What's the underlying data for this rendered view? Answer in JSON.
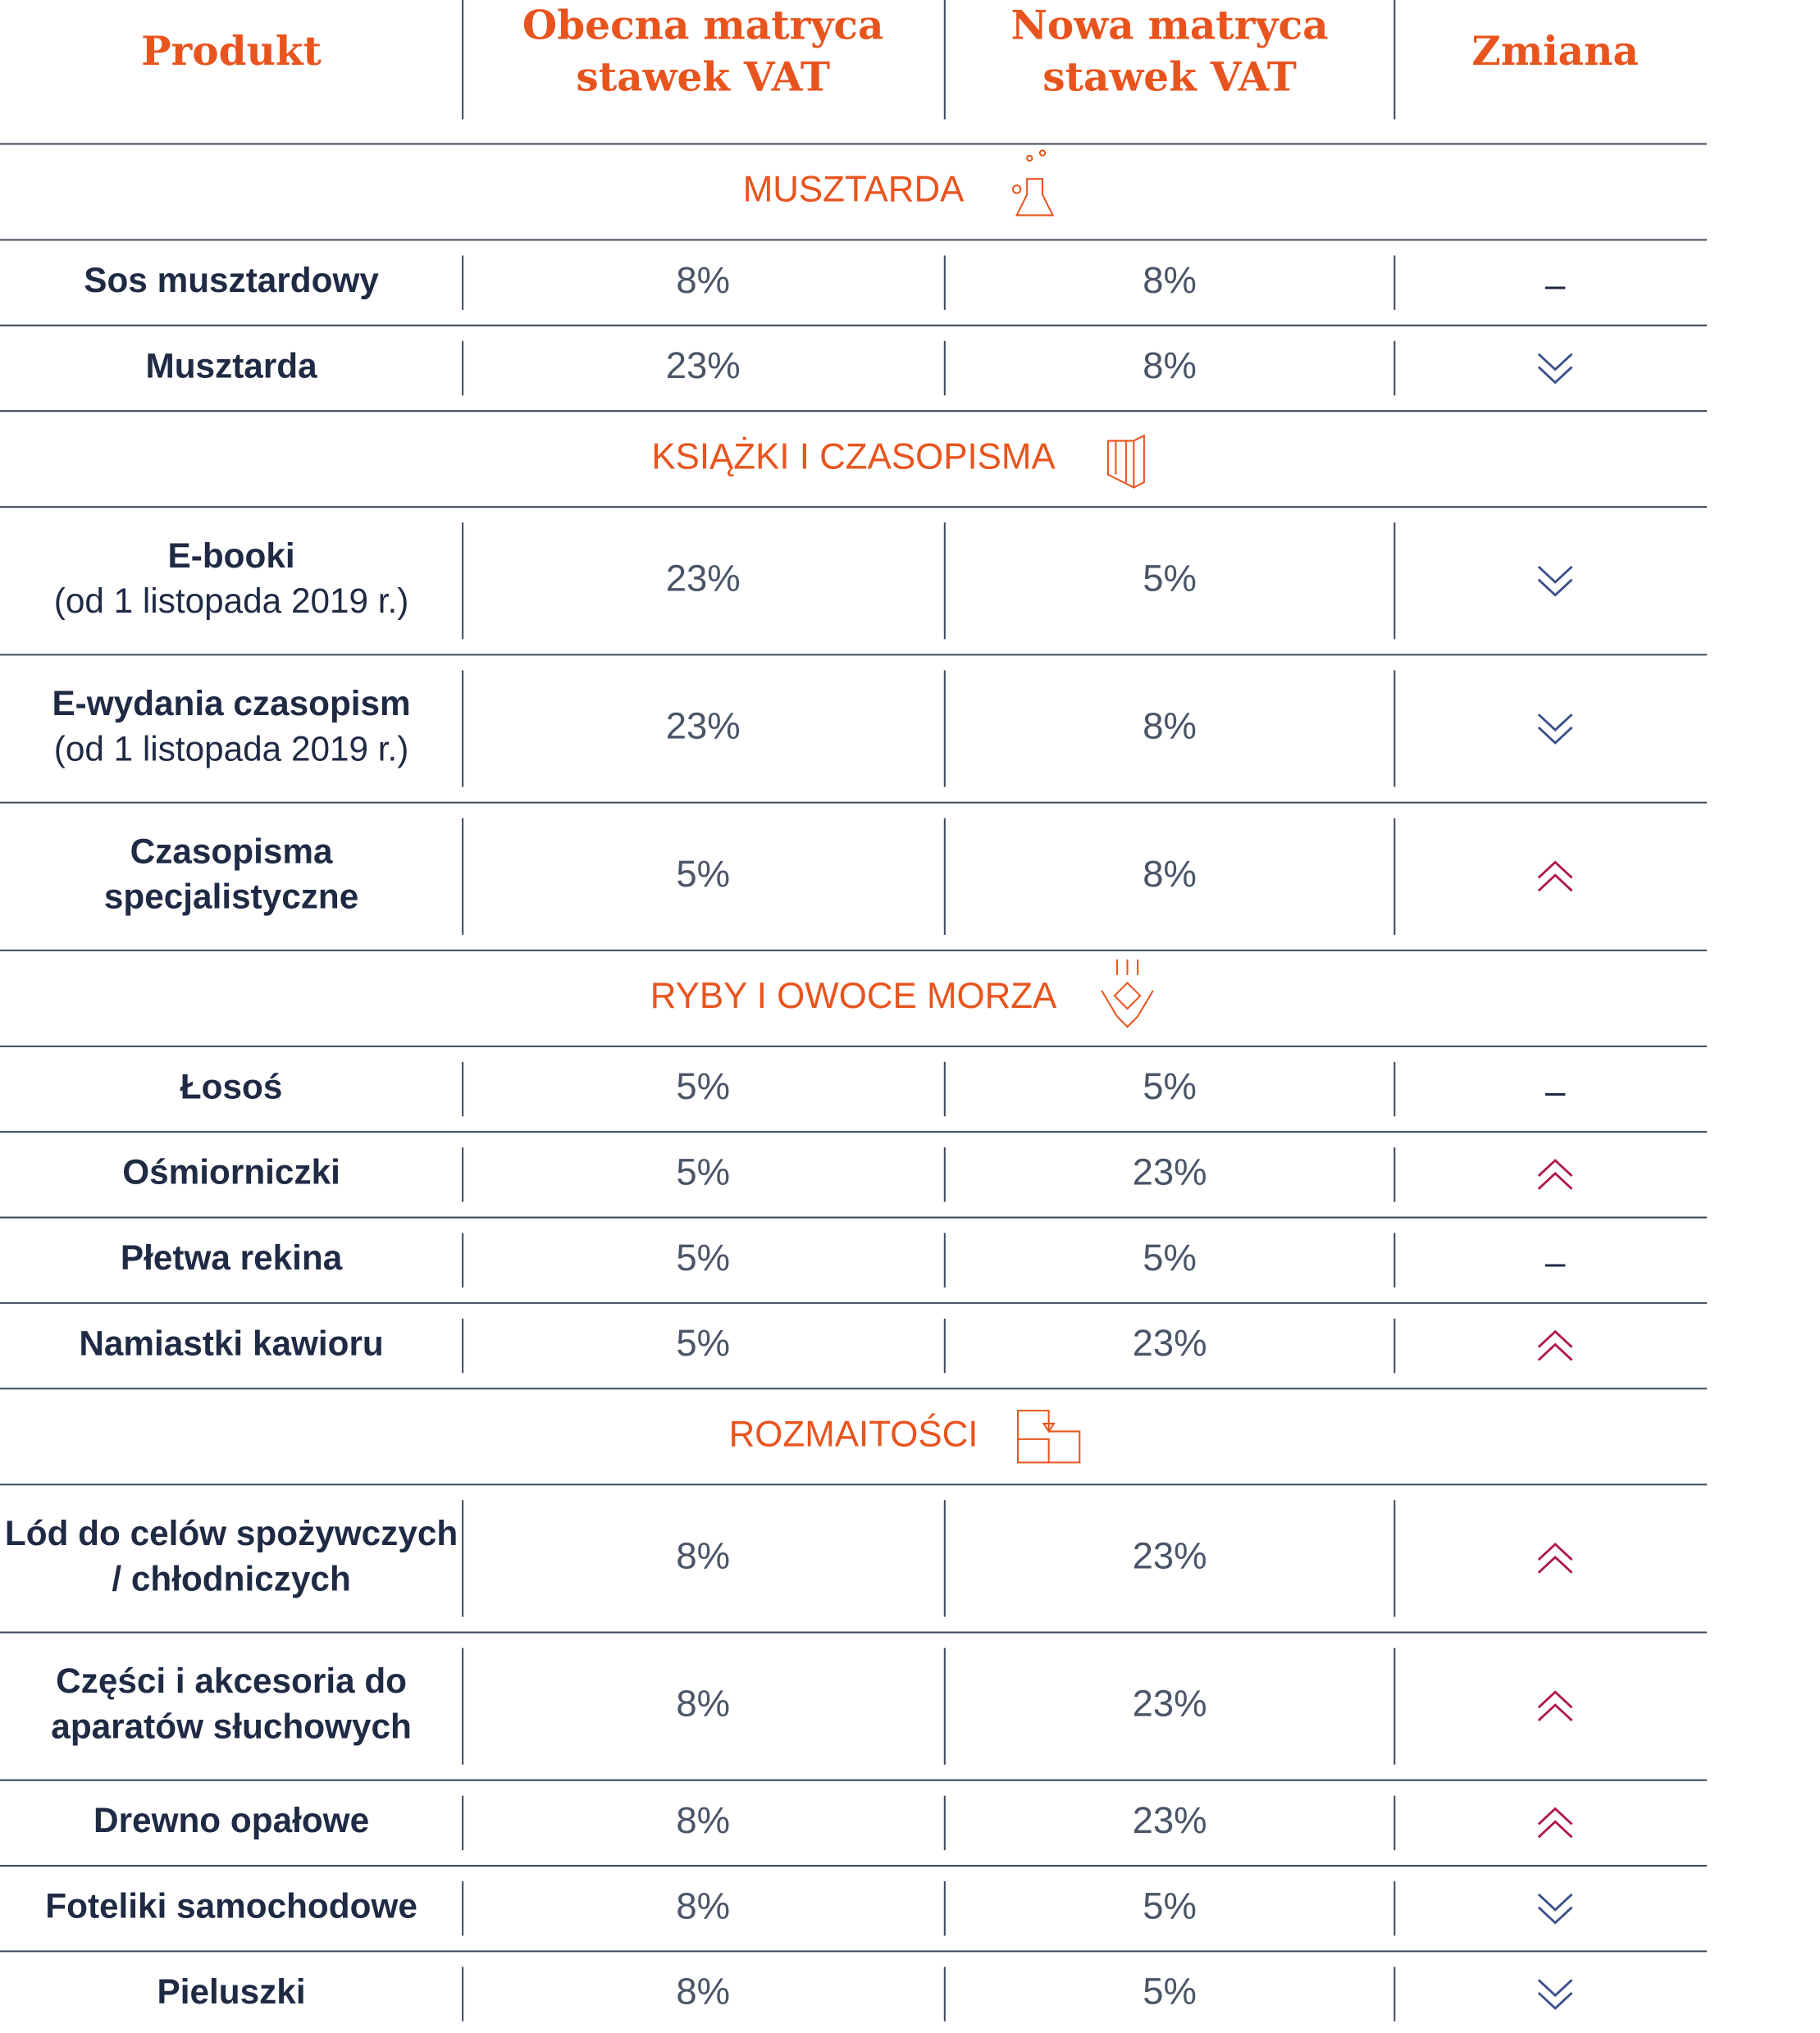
{
  "table": {
    "header": [
      [
        "Produkt"
      ],
      [
        "Obecna matryca",
        "stawek VAT"
      ],
      [
        "Nowa matryca",
        "stawek VAT"
      ],
      [
        "Zmiana"
      ]
    ],
    "sections": [
      {
        "title": "MUSZTARDA",
        "rows": [
          {
            "product": [
              "Sos musztardowy"
            ],
            "current": "8%",
            "new": "8%",
            "change": "–"
          },
          {
            "product": [
              "Musztarda"
            ],
            "current": "23%",
            "new": "8%"
          }
        ]
      },
      {
        "title": "KSIĄŻKI I CZASOPISMA",
        "rows": [
          {
            "product": [
              "E-booki"
            ],
            "note": "(od 1 listopada 2019 r.)",
            "current": "23%",
            "new": "5%"
          },
          {
            "product": [
              "E-wydania czasopism"
            ],
            "note": "(od 1 listopada 2019 r.)",
            "current": "23%",
            "new": "8%"
          },
          {
            "product": [
              "Czasopisma",
              "specjalistyczne"
            ],
            "current": "5%",
            "new": "8%"
          }
        ]
      },
      {
        "title": "RYBY I OWOCE MORZA",
        "rows": [
          {
            "product": [
              "Łosoś"
            ],
            "current": "5%",
            "new": "5%",
            "change": "–"
          },
          {
            "product": [
              "Ośmiorniczki"
            ],
            "current": "5%",
            "new": "23%"
          },
          {
            "product": [
              "Płetwa rekina"
            ],
            "current": "5%",
            "new": "5%",
            "change": "–"
          },
          {
            "product": [
              "Namiastki kawioru"
            ],
            "current": "5%",
            "new": "23%"
          }
        ]
      },
      {
        "title": "ROZMAITOŚCI",
        "rows": [
          {
            "product": [
              "Lód do celów spożywczych",
              "/ chłodniczych"
            ],
            "current": "8%",
            "new": "23%"
          },
          {
            "product": [
              "Części i akcesoria do",
              "aparatów słuchowych"
            ],
            "current": "8%",
            "new": "23%"
          },
          {
            "product": [
              "Drewno opałowe"
            ],
            "current": "8%",
            "new": "23%"
          },
          {
            "product": [
              "Foteliki samochodowe"
            ],
            "current": "8%",
            "new": "5%"
          },
          {
            "product": [
              "Pieluszki"
            ],
            "current": "8%",
            "new": "5%"
          }
        ]
      }
    ]
  }
}
